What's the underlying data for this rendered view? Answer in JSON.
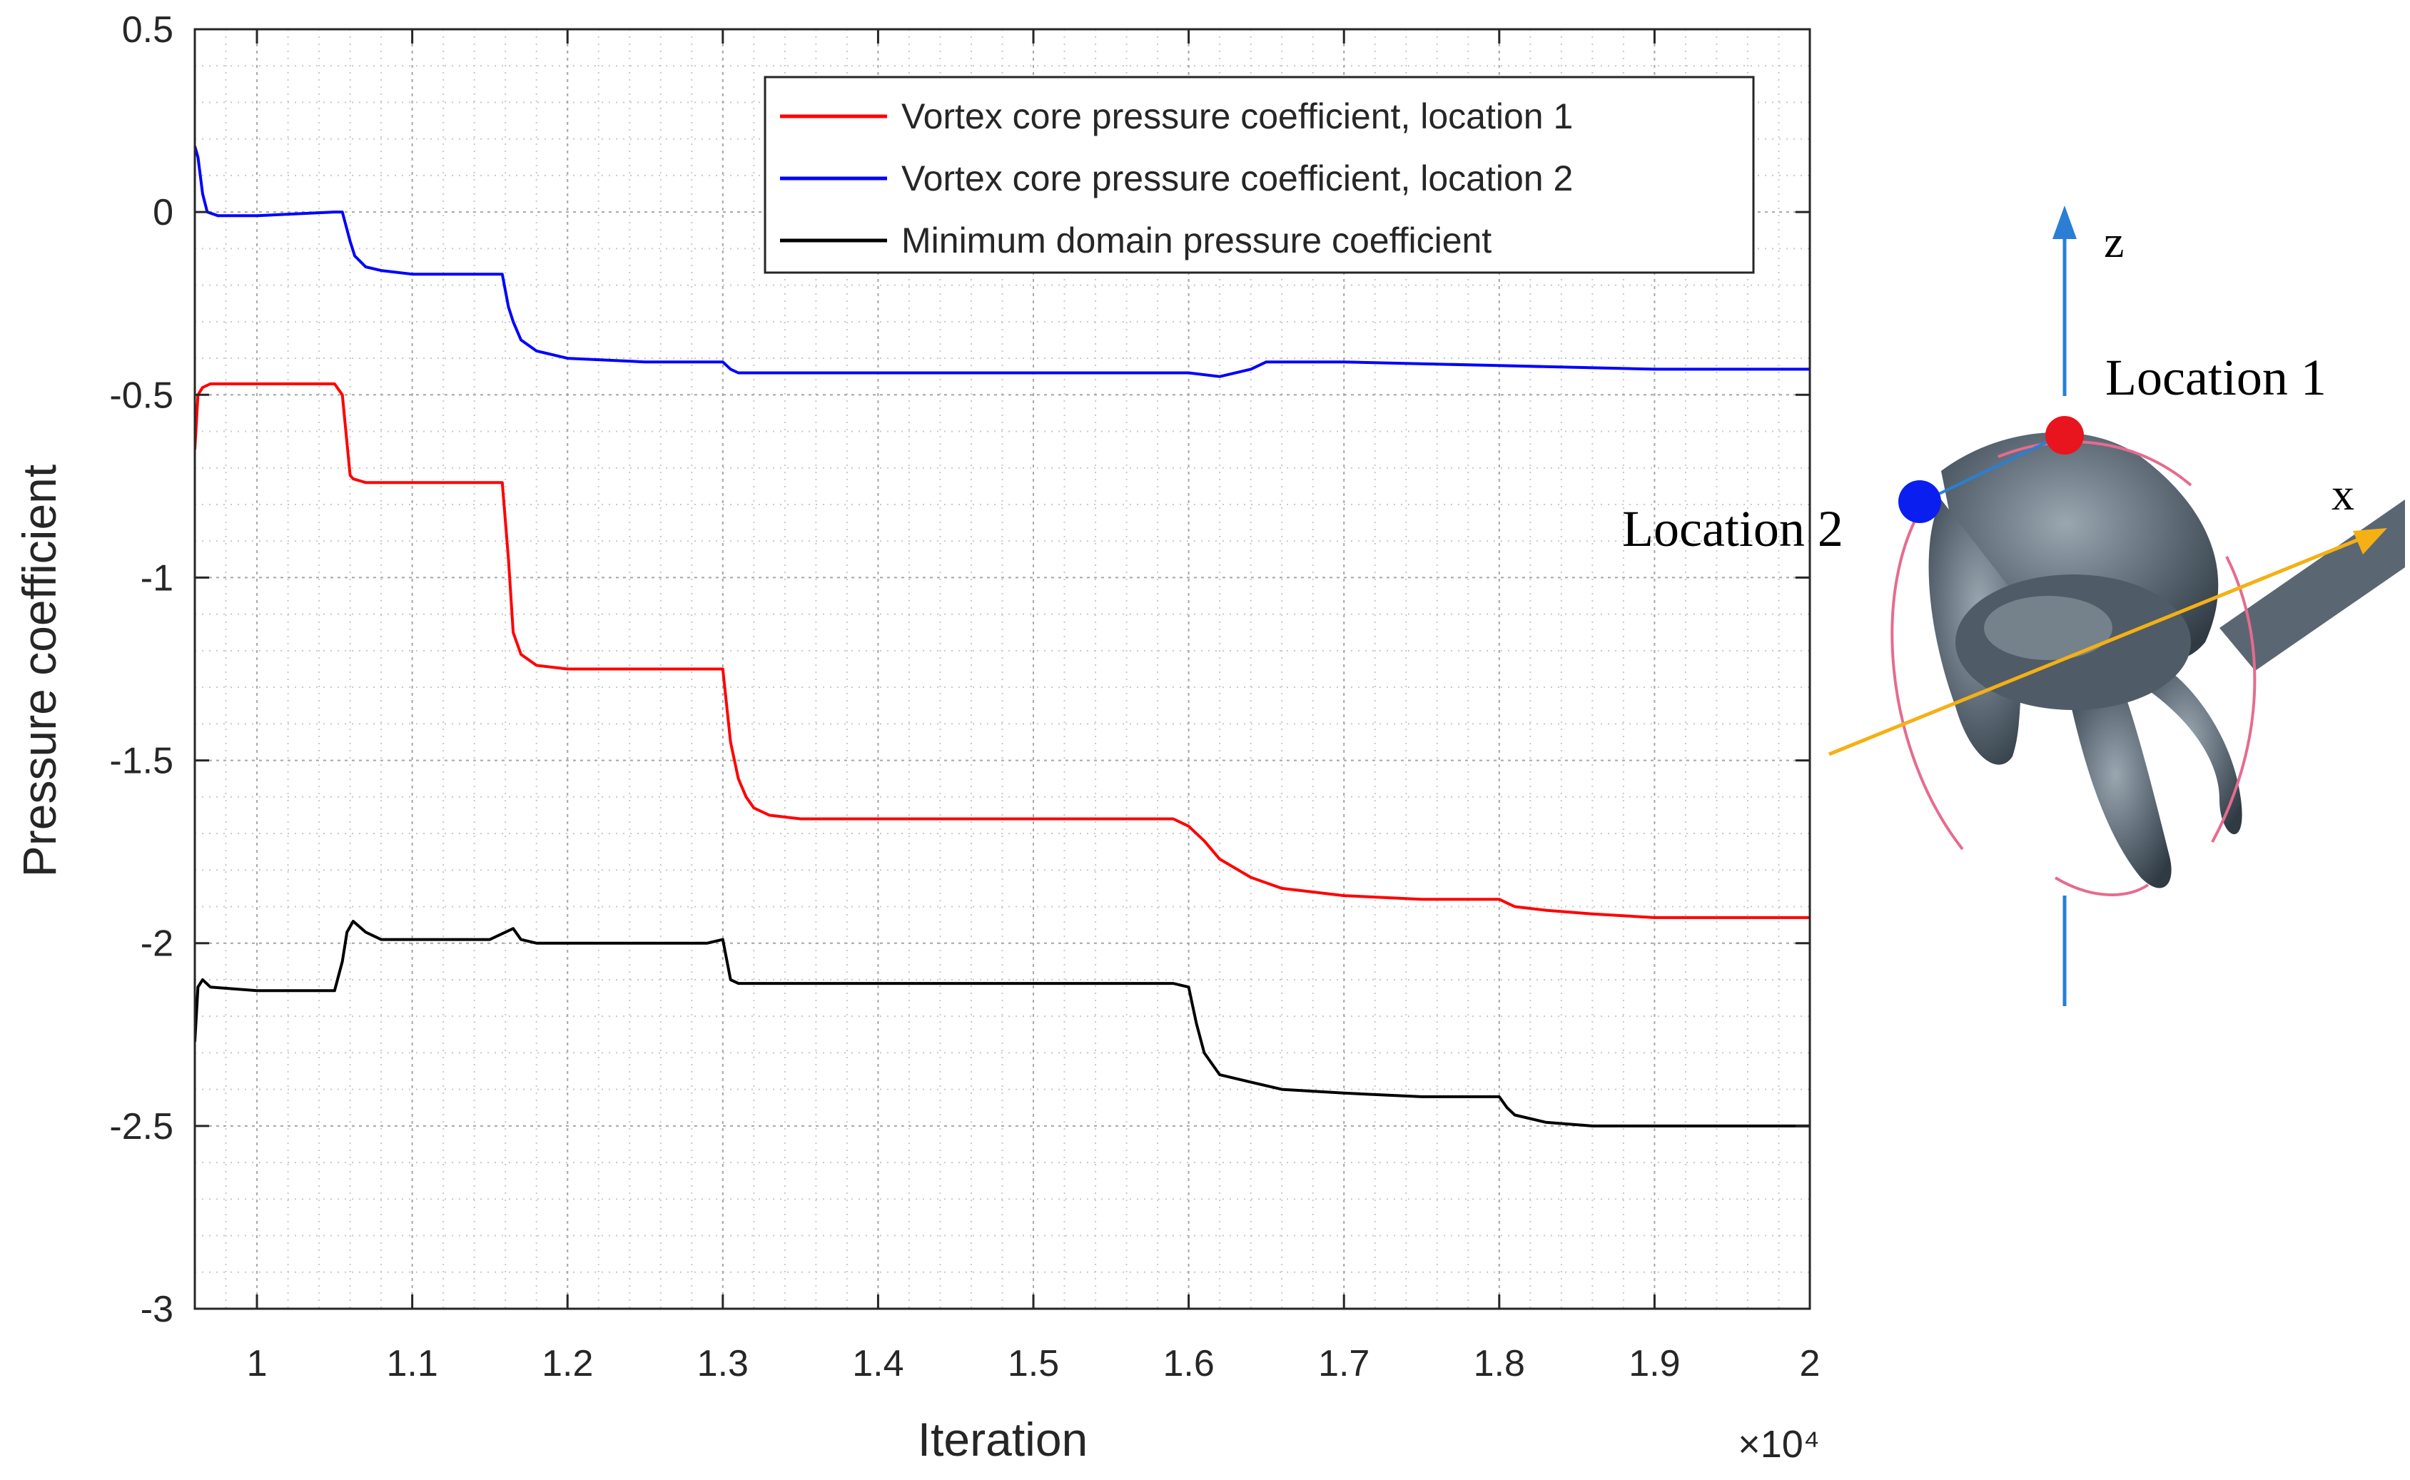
{
  "chart_data": {
    "type": "line",
    "xlabel": "Iteration",
    "ylabel": "Pressure coefficient",
    "x_multiplier": "×10⁴",
    "xlim": [
      0.96,
      2.0
    ],
    "ylim": [
      -3,
      0.5
    ],
    "xticks": [
      1,
      1.1,
      1.2,
      1.3,
      1.4,
      1.5,
      1.6,
      1.7,
      1.8,
      1.9,
      2
    ],
    "xtick_labels": [
      "1",
      "1.1",
      "1.2",
      "1.3",
      "1.4",
      "1.5",
      "1.6",
      "1.7",
      "1.8",
      "1.9",
      "2"
    ],
    "yticks": [
      -3,
      -2.5,
      -2,
      -1.5,
      -1,
      -0.5,
      0,
      0.5
    ],
    "ytick_labels": [
      "-3",
      "-2.5",
      "-2",
      "-1.5",
      "-1",
      "-0.5",
      "0",
      "0.5"
    ],
    "grid": "on (major and minor, dotted)",
    "legend_position": "top-right",
    "series": [
      {
        "name": "Vortex core pressure coefficient, location 1",
        "color": "#ff0000",
        "x": [
          0.96,
          0.962,
          0.965,
          0.97,
          1.0,
          1.05,
          1.055,
          1.06,
          1.062,
          1.07,
          1.1,
          1.15,
          1.158,
          1.162,
          1.165,
          1.17,
          1.18,
          1.2,
          1.25,
          1.29,
          1.3,
          1.305,
          1.31,
          1.315,
          1.32,
          1.33,
          1.35,
          1.4,
          1.5,
          1.59,
          1.6,
          1.61,
          1.62,
          1.64,
          1.66,
          1.7,
          1.75,
          1.79,
          1.8,
          1.805,
          1.81,
          1.83,
          1.86,
          1.9,
          2.0
        ],
        "y": [
          -0.65,
          -0.5,
          -0.48,
          -0.47,
          -0.47,
          -0.47,
          -0.5,
          -0.72,
          -0.73,
          -0.74,
          -0.74,
          -0.74,
          -0.74,
          -0.95,
          -1.15,
          -1.21,
          -1.24,
          -1.25,
          -1.25,
          -1.25,
          -1.25,
          -1.45,
          -1.55,
          -1.6,
          -1.63,
          -1.65,
          -1.66,
          -1.66,
          -1.66,
          -1.66,
          -1.68,
          -1.72,
          -1.77,
          -1.82,
          -1.85,
          -1.87,
          -1.88,
          -1.88,
          -1.88,
          -1.89,
          -1.9,
          -1.91,
          -1.92,
          -1.93,
          -1.93
        ]
      },
      {
        "name": "Vortex core pressure coefficient, location 2",
        "color": "#0000ff",
        "x": [
          0.96,
          0.962,
          0.965,
          0.968,
          0.975,
          1.0,
          1.05,
          1.055,
          1.06,
          1.063,
          1.07,
          1.08,
          1.1,
          1.15,
          1.158,
          1.162,
          1.165,
          1.17,
          1.18,
          1.2,
          1.25,
          1.3,
          1.305,
          1.31,
          1.32,
          1.35,
          1.4,
          1.5,
          1.6,
          1.62,
          1.64,
          1.65,
          1.7,
          1.8,
          1.9,
          2.0
        ],
        "y": [
          0.18,
          0.15,
          0.05,
          0.0,
          -0.01,
          -0.01,
          0.0,
          0.0,
          -0.08,
          -0.12,
          -0.15,
          -0.16,
          -0.17,
          -0.17,
          -0.17,
          -0.26,
          -0.3,
          -0.35,
          -0.38,
          -0.4,
          -0.41,
          -0.41,
          -0.43,
          -0.44,
          -0.44,
          -0.44,
          -0.44,
          -0.44,
          -0.44,
          -0.45,
          -0.43,
          -0.41,
          -0.41,
          -0.42,
          -0.43,
          -0.43
        ]
      },
      {
        "name": "Minimum domain pressure coefficient",
        "color": "#000000",
        "x": [
          0.96,
          0.962,
          0.965,
          0.97,
          1.0,
          1.05,
          1.055,
          1.058,
          1.062,
          1.07,
          1.08,
          1.1,
          1.15,
          1.16,
          1.165,
          1.17,
          1.18,
          1.2,
          1.25,
          1.29,
          1.3,
          1.305,
          1.31,
          1.35,
          1.4,
          1.5,
          1.59,
          1.6,
          1.605,
          1.61,
          1.62,
          1.64,
          1.66,
          1.7,
          1.75,
          1.79,
          1.8,
          1.805,
          1.81,
          1.83,
          1.86,
          1.9,
          2.0
        ],
        "y": [
          -2.27,
          -2.12,
          -2.1,
          -2.12,
          -2.13,
          -2.13,
          -2.05,
          -1.97,
          -1.94,
          -1.97,
          -1.99,
          -1.99,
          -1.99,
          -1.97,
          -1.96,
          -1.99,
          -2.0,
          -2.0,
          -2.0,
          -2.0,
          -1.99,
          -2.1,
          -2.11,
          -2.11,
          -2.11,
          -2.11,
          -2.11,
          -2.12,
          -2.22,
          -2.3,
          -2.36,
          -2.38,
          -2.4,
          -2.41,
          -2.42,
          -2.42,
          -2.42,
          -2.45,
          -2.47,
          -2.49,
          -2.5,
          -2.5,
          -2.5
        ]
      }
    ]
  },
  "diagram": {
    "z_label": "z",
    "x_label": "x",
    "location1_label": "Location 1",
    "location2_label": "Location 2",
    "location1_color": "#e8141e",
    "location2_color": "#0a1ef0",
    "z_axis_color": "#2a7fd4",
    "x_axis_color": "#f5b014",
    "propeller_color": "#55626d"
  }
}
